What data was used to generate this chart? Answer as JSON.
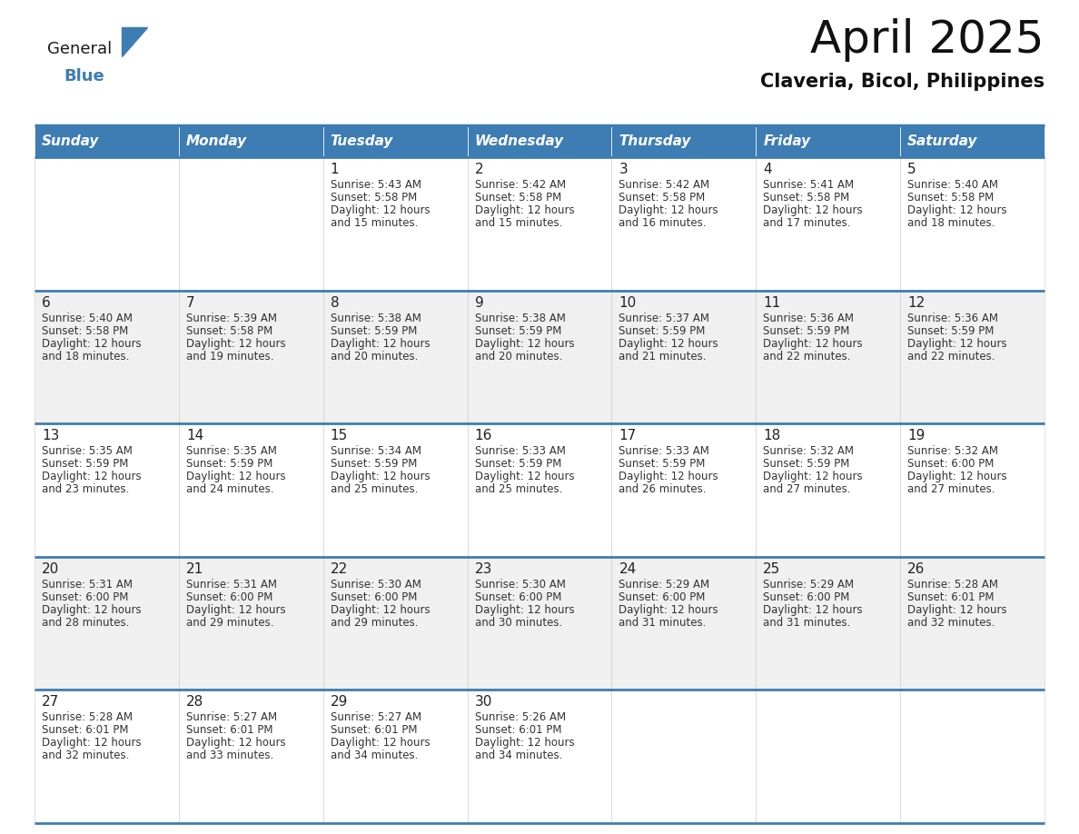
{
  "title": "April 2025",
  "subtitle": "Claveria, Bicol, Philippines",
  "header_color": "#3d7db3",
  "header_text_color": "#ffffff",
  "cell_bg_white": "#ffffff",
  "cell_bg_gray": "#f0f0f0",
  "border_color": "#3d7db3",
  "text_color": "#333333",
  "days_of_week": [
    "Sunday",
    "Monday",
    "Tuesday",
    "Wednesday",
    "Thursday",
    "Friday",
    "Saturday"
  ],
  "calendar_data": [
    [
      {
        "day": "",
        "sunrise": "",
        "sunset": "",
        "daylight": ""
      },
      {
        "day": "",
        "sunrise": "",
        "sunset": "",
        "daylight": ""
      },
      {
        "day": "1",
        "sunrise": "Sunrise: 5:43 AM",
        "sunset": "Sunset: 5:58 PM",
        "daylight": "Daylight: 12 hours\nand 15 minutes."
      },
      {
        "day": "2",
        "sunrise": "Sunrise: 5:42 AM",
        "sunset": "Sunset: 5:58 PM",
        "daylight": "Daylight: 12 hours\nand 15 minutes."
      },
      {
        "day": "3",
        "sunrise": "Sunrise: 5:42 AM",
        "sunset": "Sunset: 5:58 PM",
        "daylight": "Daylight: 12 hours\nand 16 minutes."
      },
      {
        "day": "4",
        "sunrise": "Sunrise: 5:41 AM",
        "sunset": "Sunset: 5:58 PM",
        "daylight": "Daylight: 12 hours\nand 17 minutes."
      },
      {
        "day": "5",
        "sunrise": "Sunrise: 5:40 AM",
        "sunset": "Sunset: 5:58 PM",
        "daylight": "Daylight: 12 hours\nand 18 minutes."
      }
    ],
    [
      {
        "day": "6",
        "sunrise": "Sunrise: 5:40 AM",
        "sunset": "Sunset: 5:58 PM",
        "daylight": "Daylight: 12 hours\nand 18 minutes."
      },
      {
        "day": "7",
        "sunrise": "Sunrise: 5:39 AM",
        "sunset": "Sunset: 5:58 PM",
        "daylight": "Daylight: 12 hours\nand 19 minutes."
      },
      {
        "day": "8",
        "sunrise": "Sunrise: 5:38 AM",
        "sunset": "Sunset: 5:59 PM",
        "daylight": "Daylight: 12 hours\nand 20 minutes."
      },
      {
        "day": "9",
        "sunrise": "Sunrise: 5:38 AM",
        "sunset": "Sunset: 5:59 PM",
        "daylight": "Daylight: 12 hours\nand 20 minutes."
      },
      {
        "day": "10",
        "sunrise": "Sunrise: 5:37 AM",
        "sunset": "Sunset: 5:59 PM",
        "daylight": "Daylight: 12 hours\nand 21 minutes."
      },
      {
        "day": "11",
        "sunrise": "Sunrise: 5:36 AM",
        "sunset": "Sunset: 5:59 PM",
        "daylight": "Daylight: 12 hours\nand 22 minutes."
      },
      {
        "day": "12",
        "sunrise": "Sunrise: 5:36 AM",
        "sunset": "Sunset: 5:59 PM",
        "daylight": "Daylight: 12 hours\nand 22 minutes."
      }
    ],
    [
      {
        "day": "13",
        "sunrise": "Sunrise: 5:35 AM",
        "sunset": "Sunset: 5:59 PM",
        "daylight": "Daylight: 12 hours\nand 23 minutes."
      },
      {
        "day": "14",
        "sunrise": "Sunrise: 5:35 AM",
        "sunset": "Sunset: 5:59 PM",
        "daylight": "Daylight: 12 hours\nand 24 minutes."
      },
      {
        "day": "15",
        "sunrise": "Sunrise: 5:34 AM",
        "sunset": "Sunset: 5:59 PM",
        "daylight": "Daylight: 12 hours\nand 25 minutes."
      },
      {
        "day": "16",
        "sunrise": "Sunrise: 5:33 AM",
        "sunset": "Sunset: 5:59 PM",
        "daylight": "Daylight: 12 hours\nand 25 minutes."
      },
      {
        "day": "17",
        "sunrise": "Sunrise: 5:33 AM",
        "sunset": "Sunset: 5:59 PM",
        "daylight": "Daylight: 12 hours\nand 26 minutes."
      },
      {
        "day": "18",
        "sunrise": "Sunrise: 5:32 AM",
        "sunset": "Sunset: 5:59 PM",
        "daylight": "Daylight: 12 hours\nand 27 minutes."
      },
      {
        "day": "19",
        "sunrise": "Sunrise: 5:32 AM",
        "sunset": "Sunset: 6:00 PM",
        "daylight": "Daylight: 12 hours\nand 27 minutes."
      }
    ],
    [
      {
        "day": "20",
        "sunrise": "Sunrise: 5:31 AM",
        "sunset": "Sunset: 6:00 PM",
        "daylight": "Daylight: 12 hours\nand 28 minutes."
      },
      {
        "day": "21",
        "sunrise": "Sunrise: 5:31 AM",
        "sunset": "Sunset: 6:00 PM",
        "daylight": "Daylight: 12 hours\nand 29 minutes."
      },
      {
        "day": "22",
        "sunrise": "Sunrise: 5:30 AM",
        "sunset": "Sunset: 6:00 PM",
        "daylight": "Daylight: 12 hours\nand 29 minutes."
      },
      {
        "day": "23",
        "sunrise": "Sunrise: 5:30 AM",
        "sunset": "Sunset: 6:00 PM",
        "daylight": "Daylight: 12 hours\nand 30 minutes."
      },
      {
        "day": "24",
        "sunrise": "Sunrise: 5:29 AM",
        "sunset": "Sunset: 6:00 PM",
        "daylight": "Daylight: 12 hours\nand 31 minutes."
      },
      {
        "day": "25",
        "sunrise": "Sunrise: 5:29 AM",
        "sunset": "Sunset: 6:00 PM",
        "daylight": "Daylight: 12 hours\nand 31 minutes."
      },
      {
        "day": "26",
        "sunrise": "Sunrise: 5:28 AM",
        "sunset": "Sunset: 6:01 PM",
        "daylight": "Daylight: 12 hours\nand 32 minutes."
      }
    ],
    [
      {
        "day": "27",
        "sunrise": "Sunrise: 5:28 AM",
        "sunset": "Sunset: 6:01 PM",
        "daylight": "Daylight: 12 hours\nand 32 minutes."
      },
      {
        "day": "28",
        "sunrise": "Sunrise: 5:27 AM",
        "sunset": "Sunset: 6:01 PM",
        "daylight": "Daylight: 12 hours\nand 33 minutes."
      },
      {
        "day": "29",
        "sunrise": "Sunrise: 5:27 AM",
        "sunset": "Sunset: 6:01 PM",
        "daylight": "Daylight: 12 hours\nand 34 minutes."
      },
      {
        "day": "30",
        "sunrise": "Sunrise: 5:26 AM",
        "sunset": "Sunset: 6:01 PM",
        "daylight": "Daylight: 12 hours\nand 34 minutes."
      },
      {
        "day": "",
        "sunrise": "",
        "sunset": "",
        "daylight": ""
      },
      {
        "day": "",
        "sunrise": "",
        "sunset": "",
        "daylight": ""
      },
      {
        "day": "",
        "sunrise": "",
        "sunset": "",
        "daylight": ""
      }
    ]
  ],
  "logo_text_general": "General",
  "logo_text_blue": "Blue",
  "logo_triangle_color": "#3d7db3",
  "title_fontsize": 36,
  "subtitle_fontsize": 15,
  "header_fontsize": 11,
  "day_num_fontsize": 11,
  "cell_text_fontsize": 8.5
}
